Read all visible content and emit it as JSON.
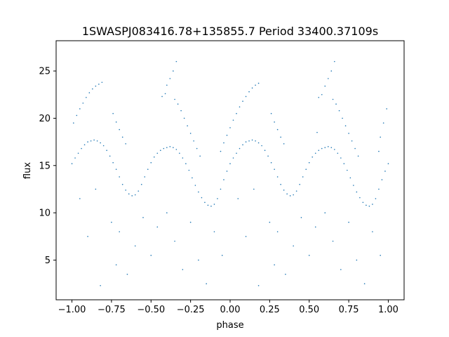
{
  "chart_data": {
    "type": "scatter",
    "title": "1SWASPJ083416.78+135855.7 Period 33400.37109s",
    "xlabel": "phase",
    "ylabel": "flux",
    "xlim": [
      -1.1,
      1.1
    ],
    "ylim": [
      0.8,
      28.2
    ],
    "x_ticks": [
      -1.0,
      -0.75,
      -0.5,
      -0.25,
      0.0,
      0.25,
      0.5,
      0.75,
      1.0
    ],
    "x_tick_labels": [
      "−1.00",
      "−0.75",
      "−0.50",
      "−0.25",
      "0.00",
      "0.25",
      "0.50",
      "0.75",
      "1.00"
    ],
    "y_ticks": [
      5,
      10,
      15,
      20,
      25
    ],
    "y_tick_labels": [
      "5",
      "10",
      "15",
      "20",
      "25"
    ],
    "grid": false,
    "marker_color": "#1f77b4",
    "marker_size": 0.8,
    "series": [
      {
        "values": [
          [
            -1.0,
            15.2
          ],
          [
            -0.98,
            15.8
          ],
          [
            -0.96,
            16.3
          ],
          [
            -0.94,
            16.8
          ],
          [
            -0.92,
            17.2
          ],
          [
            -0.9,
            17.5
          ],
          [
            -0.88,
            17.6
          ],
          [
            -0.86,
            17.7
          ],
          [
            -0.84,
            17.6
          ],
          [
            -0.82,
            17.4
          ],
          [
            -0.8,
            17.1
          ],
          [
            -0.78,
            16.6
          ],
          [
            -0.76,
            16.0
          ],
          [
            -0.74,
            15.3
          ],
          [
            -0.72,
            14.6
          ],
          [
            -0.7,
            13.8
          ],
          [
            -0.68,
            13.0
          ],
          [
            -0.66,
            12.4
          ],
          [
            -0.64,
            12.0
          ],
          [
            -0.62,
            11.8
          ],
          [
            -0.6,
            11.9
          ],
          [
            -0.58,
            12.3
          ],
          [
            -0.56,
            13.0
          ],
          [
            -0.54,
            13.8
          ],
          [
            -0.52,
            14.6
          ],
          [
            -0.5,
            15.3
          ],
          [
            -0.48,
            15.9
          ],
          [
            -0.46,
            16.3
          ],
          [
            -0.44,
            16.6
          ],
          [
            -0.42,
            16.8
          ],
          [
            -0.4,
            16.9
          ],
          [
            -0.38,
            17.0
          ],
          [
            -0.36,
            16.9
          ],
          [
            -0.34,
            16.7
          ],
          [
            -0.32,
            16.3
          ],
          [
            -0.3,
            15.8
          ],
          [
            -0.28,
            15.2
          ],
          [
            -0.26,
            14.5
          ],
          [
            -0.24,
            13.7
          ],
          [
            -0.22,
            12.9
          ],
          [
            -0.2,
            12.2
          ],
          [
            -0.18,
            11.6
          ],
          [
            -0.16,
            11.1
          ],
          [
            -0.14,
            10.8
          ],
          [
            -0.12,
            10.7
          ],
          [
            -0.1,
            10.9
          ],
          [
            -0.08,
            11.5
          ],
          [
            -0.06,
            12.5
          ],
          [
            -0.04,
            13.5
          ],
          [
            -0.02,
            14.4
          ],
          [
            0.0,
            15.2
          ],
          [
            0.02,
            15.8
          ],
          [
            0.04,
            16.3
          ],
          [
            0.06,
            16.8
          ],
          [
            0.08,
            17.2
          ],
          [
            0.1,
            17.5
          ],
          [
            0.12,
            17.6
          ],
          [
            0.14,
            17.7
          ],
          [
            0.16,
            17.6
          ],
          [
            0.18,
            17.4
          ],
          [
            0.2,
            17.1
          ],
          [
            0.22,
            16.6
          ],
          [
            0.24,
            16.0
          ],
          [
            0.26,
            15.3
          ],
          [
            0.28,
            14.6
          ],
          [
            0.3,
            13.8
          ],
          [
            0.32,
            13.0
          ],
          [
            0.34,
            12.4
          ],
          [
            0.36,
            12.0
          ],
          [
            0.38,
            11.8
          ],
          [
            0.4,
            11.9
          ],
          [
            0.42,
            12.3
          ],
          [
            0.44,
            13.0
          ],
          [
            0.46,
            13.8
          ],
          [
            0.48,
            14.6
          ],
          [
            0.5,
            15.3
          ],
          [
            0.52,
            15.9
          ],
          [
            0.54,
            16.3
          ],
          [
            0.56,
            16.6
          ],
          [
            0.58,
            16.8
          ],
          [
            0.6,
            16.9
          ],
          [
            0.62,
            17.0
          ],
          [
            0.64,
            16.9
          ],
          [
            0.66,
            16.7
          ],
          [
            0.68,
            16.3
          ],
          [
            0.7,
            15.8
          ],
          [
            0.72,
            15.2
          ],
          [
            0.74,
            14.5
          ],
          [
            0.76,
            13.7
          ],
          [
            0.78,
            12.9
          ],
          [
            0.8,
            12.2
          ],
          [
            0.82,
            11.6
          ],
          [
            0.84,
            11.1
          ],
          [
            0.86,
            10.8
          ],
          [
            0.88,
            10.7
          ],
          [
            0.9,
            10.9
          ],
          [
            0.92,
            11.5
          ],
          [
            0.94,
            12.5
          ],
          [
            0.96,
            13.5
          ],
          [
            0.98,
            14.4
          ],
          [
            1.0,
            15.2
          ],
          [
            -0.99,
            19.5
          ],
          [
            -0.97,
            20.3
          ],
          [
            -0.95,
            21.0
          ],
          [
            -0.93,
            21.6
          ],
          [
            -0.91,
            22.2
          ],
          [
            -0.89,
            22.7
          ],
          [
            -0.87,
            23.1
          ],
          [
            -0.85,
            23.4
          ],
          [
            -0.83,
            23.6
          ],
          [
            -0.81,
            23.8
          ],
          [
            -0.74,
            20.5
          ],
          [
            -0.72,
            19.6
          ],
          [
            -0.7,
            18.8
          ],
          [
            -0.68,
            18.0
          ],
          [
            -0.66,
            17.3
          ],
          [
            -0.43,
            22.3
          ],
          [
            -0.41,
            22.6
          ],
          [
            -0.4,
            23.5
          ],
          [
            -0.38,
            24.2
          ],
          [
            -0.36,
            25.0
          ],
          [
            -0.34,
            26.0
          ],
          [
            -0.35,
            22.0
          ],
          [
            -0.33,
            21.5
          ],
          [
            -0.31,
            20.8
          ],
          [
            -0.29,
            20.0
          ],
          [
            -0.27,
            19.2
          ],
          [
            -0.25,
            18.4
          ],
          [
            -0.23,
            17.6
          ],
          [
            -0.21,
            16.8
          ],
          [
            -0.19,
            16.0
          ],
          [
            -0.06,
            16.5
          ],
          [
            -0.04,
            17.4
          ],
          [
            -0.02,
            18.2
          ],
          [
            0.0,
            19.0
          ],
          [
            0.02,
            19.8
          ],
          [
            0.04,
            20.5
          ],
          [
            0.06,
            21.2
          ],
          [
            0.08,
            21.8
          ],
          [
            0.1,
            22.3
          ],
          [
            0.12,
            22.8
          ],
          [
            0.14,
            23.2
          ],
          [
            0.16,
            23.5
          ],
          [
            0.18,
            23.7
          ],
          [
            0.26,
            20.5
          ],
          [
            0.28,
            19.6
          ],
          [
            0.3,
            18.8
          ],
          [
            0.32,
            18.0
          ],
          [
            0.34,
            17.3
          ],
          [
            0.55,
            18.5
          ],
          [
            0.56,
            22.2
          ],
          [
            0.58,
            22.5
          ],
          [
            0.6,
            23.4
          ],
          [
            0.62,
            24.2
          ],
          [
            0.64,
            25.0
          ],
          [
            0.66,
            26.0
          ],
          [
            0.65,
            22.0
          ],
          [
            0.67,
            21.5
          ],
          [
            0.69,
            20.8
          ],
          [
            0.71,
            20.0
          ],
          [
            0.73,
            19.2
          ],
          [
            0.75,
            18.4
          ],
          [
            0.77,
            17.6
          ],
          [
            0.79,
            16.8
          ],
          [
            0.81,
            16.0
          ],
          [
            0.94,
            16.5
          ],
          [
            0.95,
            18.0
          ],
          [
            0.97,
            19.5
          ],
          [
            0.99,
            21.0
          ],
          [
            -0.95,
            11.5
          ],
          [
            -0.9,
            7.5
          ],
          [
            -0.85,
            12.5
          ],
          [
            -0.75,
            9.0
          ],
          [
            -0.72,
            4.5
          ],
          [
            -0.7,
            8.0
          ],
          [
            -0.65,
            3.5
          ],
          [
            -0.6,
            6.5
          ],
          [
            -0.55,
            9.5
          ],
          [
            -0.5,
            5.5
          ],
          [
            -0.46,
            8.5
          ],
          [
            -0.4,
            10.0
          ],
          [
            -0.35,
            7.0
          ],
          [
            -0.3,
            4.0
          ],
          [
            -0.25,
            9.0
          ],
          [
            -0.2,
            5.0
          ],
          [
            -0.15,
            2.5
          ],
          [
            -0.1,
            8.0
          ],
          [
            -0.05,
            5.5
          ],
          [
            0.05,
            11.5
          ],
          [
            0.1,
            7.5
          ],
          [
            0.15,
            12.5
          ],
          [
            0.25,
            9.0
          ],
          [
            0.28,
            4.5
          ],
          [
            0.3,
            8.0
          ],
          [
            0.35,
            3.5
          ],
          [
            0.4,
            6.5
          ],
          [
            0.45,
            9.5
          ],
          [
            0.5,
            5.5
          ],
          [
            0.54,
            8.5
          ],
          [
            0.6,
            10.0
          ],
          [
            0.65,
            7.0
          ],
          [
            0.7,
            4.0
          ],
          [
            0.75,
            9.0
          ],
          [
            0.8,
            5.0
          ],
          [
            0.85,
            2.5
          ],
          [
            0.9,
            8.0
          ],
          [
            0.95,
            5.5
          ],
          [
            -0.82,
            2.3
          ],
          [
            0.18,
            2.3
          ]
        ]
      }
    ]
  }
}
